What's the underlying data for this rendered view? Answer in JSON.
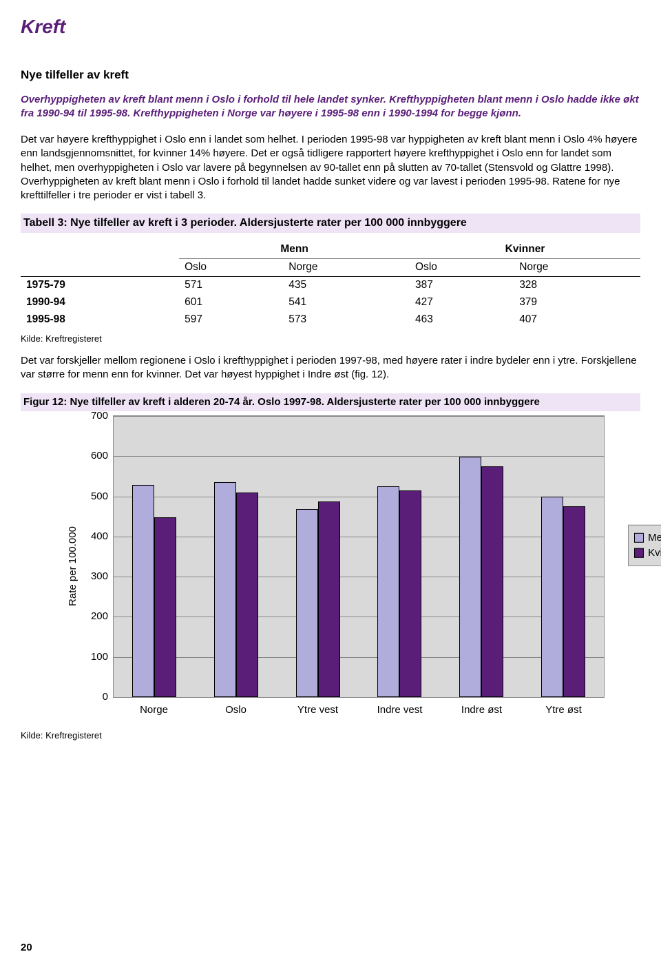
{
  "page": {
    "title": "Kreft",
    "section_heading": "Nye tilfeller av kreft",
    "intro": "Overhyppigheten av kreft blant menn i Oslo i forhold til hele landet synker. Krefthyppigheten blant menn i Oslo hadde ikke økt fra 1990-94 til 1995-98. Krefthyppigheten i Norge var høyere i 1995-98 enn i 1990-1994 for begge kjønn.",
    "body1": "Det var høyere krefthyppighet i Oslo enn i landet som helhet. I perioden 1995-98 var hyppigheten av kreft blant menn i Oslo 4% høyere enn landsgjennomsnittet, for kvinner 14% høyere. Det er også tidligere rapportert høyere krefthyppighet i Oslo enn for landet som helhet, men overhyppigheten i Oslo var lavere på begynnelsen av 90-tallet enn på slutten av 70-tallet (Stensvold  og Glattre 1998). Overhyppigheten av kreft blant menn i Oslo i forhold til landet hadde sunket videre og var lavest i perioden 1995-98. Ratene for nye krefttilfeller i tre perioder er vist i tabell 3.",
    "body2": "Det var forskjeller mellom regionene i Oslo i krefthyppighet i perioden 1997-98, med høyere rater i indre bydeler enn i ytre. Forskjellene var større for menn enn for kvinner. Det var høyest hyppighet i Indre øst (fig. 12).",
    "source": "Kilde: Kreftregisteret",
    "pagenum": "20"
  },
  "table": {
    "caption": "Tabell 3: Nye tilfeller av kreft i 3 perioder. Aldersjusterte rater per 100 000 innbyggere",
    "group_headers": [
      "Menn",
      "Kvinner"
    ],
    "sub_headers": [
      "Oslo",
      "Norge",
      "Oslo",
      "Norge"
    ],
    "rows": [
      {
        "label": "1975-79",
        "cells": [
          "571",
          "435",
          "387",
          "328"
        ]
      },
      {
        "label": "1990-94",
        "cells": [
          "601",
          "541",
          "427",
          "379"
        ]
      },
      {
        "label": "1995-98",
        "cells": [
          "597",
          "573",
          "463",
          "407"
        ]
      }
    ]
  },
  "chart": {
    "caption": "Figur 12: Nye tilfeller av kreft i alderen 20-74 år. Oslo 1997-98. Aldersjusterte rater per 100 000 innbyggere",
    "type": "bar",
    "ylabel": "Rate per 100.000",
    "ylim": [
      0,
      700
    ],
    "ytick_step": 100,
    "yticks": [
      "0",
      "100",
      "200",
      "300",
      "400",
      "500",
      "600",
      "700"
    ],
    "categories": [
      "Norge",
      "Oslo",
      "Ytre vest",
      "Indre vest",
      "Indre øst",
      "Ytre øst"
    ],
    "series": [
      {
        "name": "Menn",
        "color": "#b0acdc",
        "values": [
          528,
          535,
          468,
          525,
          598,
          500
        ]
      },
      {
        "name": "Kvinner",
        "color": "#5a1e78",
        "values": [
          448,
          510,
          488,
          515,
          575,
          475
        ]
      }
    ],
    "legend": [
      "Menn",
      "Kvinner"
    ],
    "plot_bg": "#d9d9d9",
    "grid_color": "#888888",
    "bar_border": "#000000"
  }
}
